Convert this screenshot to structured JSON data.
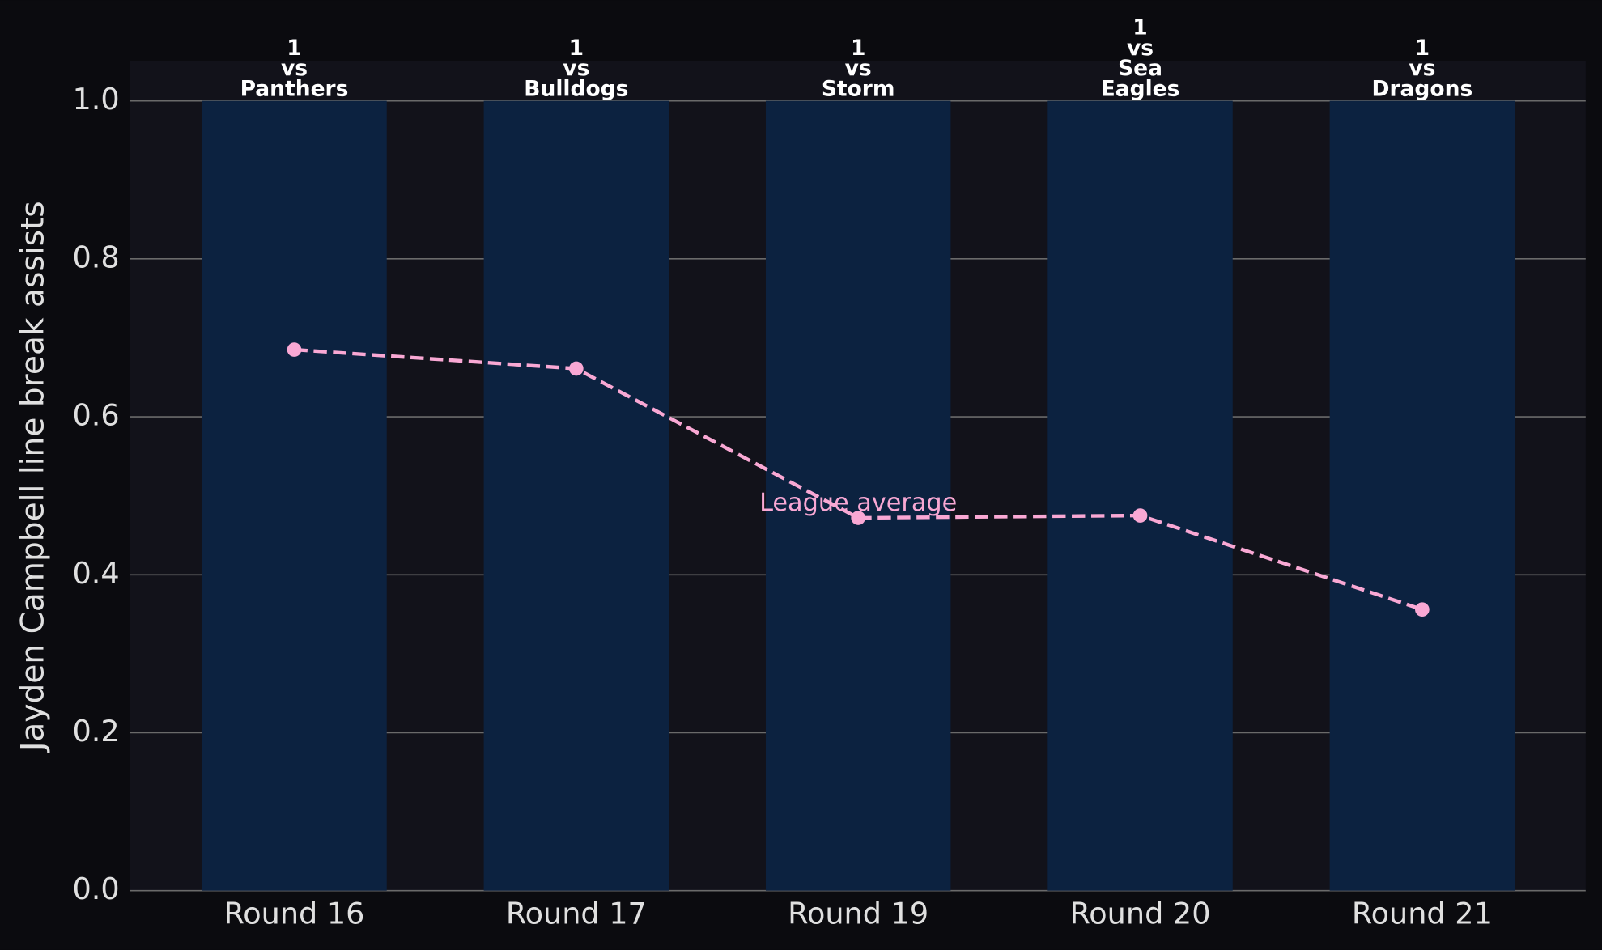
{
  "chart_data": {
    "type": "bar",
    "y_label": "Jayden Campbell line break assists",
    "categories": [
      "Round 16",
      "Round 17",
      "Round 19",
      "Round 20",
      "Round 21"
    ],
    "values": [
      1,
      1,
      1,
      1,
      1
    ],
    "color": "#0c2240",
    "bar_labels": [
      [
        "vs",
        "Panthers"
      ],
      [
        "vs",
        "Bulldogs"
      ],
      [
        "vs",
        "Storm"
      ],
      [
        "vs",
        "Sea",
        "Eagles"
      ],
      [
        "vs",
        "Dragons"
      ]
    ],
    "line": {
      "type": "line",
      "name": "League average",
      "color": "#f9a8d4",
      "style": "dashed",
      "values": [
        0.685,
        0.661,
        0.472,
        0.475,
        0.356
      ]
    },
    "ylim": [
      0,
      1.05
    ],
    "yticks": [
      {
        "value": 0,
        "label": "0.0"
      },
      0.2,
      0.4,
      0.6,
      0.8,
      {
        "value": 1,
        "label": "1.0"
      }
    ],
    "grid": true
  }
}
